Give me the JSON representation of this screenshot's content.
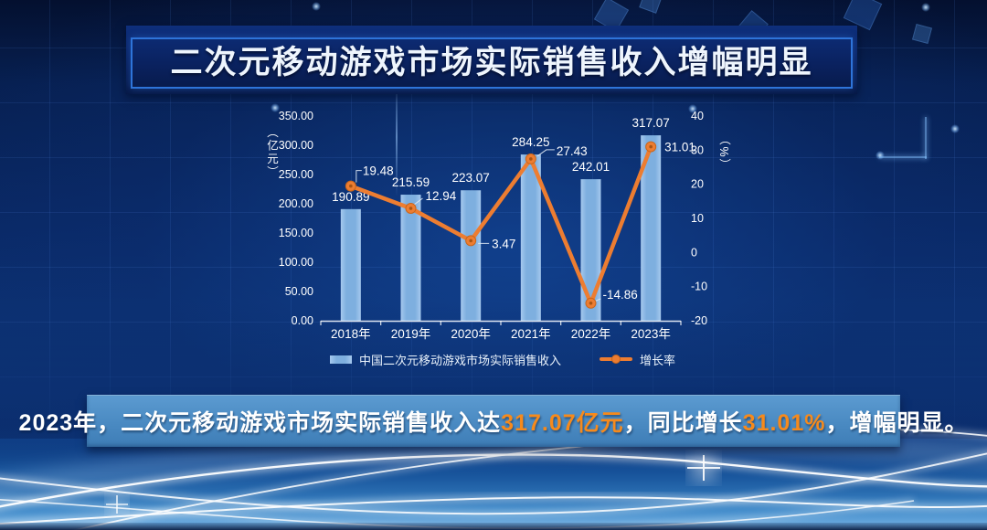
{
  "title": "二次元移动游戏市场实际销售收入增幅明显",
  "summary": {
    "part1": "2023年，二次元移动游戏市场实际销售收入达",
    "highlight1": "317.07亿元",
    "part2": "，同比增长",
    "highlight2": "31.01%",
    "part3": "，增幅明显。"
  },
  "colors": {
    "bar": "#7eafdf",
    "line": "#ed7d31",
    "accent_orange": "#f68a1c",
    "banner_border": "#2e74d9",
    "axis_text": "#ffffff"
  },
  "chart_data": {
    "type": "bar",
    "subtype": "bar+line combo, dual axis",
    "categories": [
      "2018年",
      "2019年",
      "2020年",
      "2021年",
      "2022年",
      "2023年"
    ],
    "series": [
      {
        "name": "中国二次元移动游戏市场实际销售收入",
        "type": "bar",
        "axis": "left",
        "values": [
          190.89,
          215.59,
          223.07,
          284.25,
          242.01,
          317.07
        ]
      },
      {
        "name": "增长率",
        "type": "line",
        "axis": "right",
        "values": [
          19.48,
          12.94,
          3.47,
          27.43,
          -14.86,
          31.01
        ]
      }
    ],
    "y_left": {
      "unit": "（亿元）",
      "min": 0,
      "max": 350,
      "step": 50,
      "decimals": 2
    },
    "y_right": {
      "unit": "（%）",
      "min": -20,
      "max": 40,
      "step": 10,
      "decimals": 0
    },
    "legend_position": "bottom",
    "grid": false,
    "data_labels": true
  }
}
